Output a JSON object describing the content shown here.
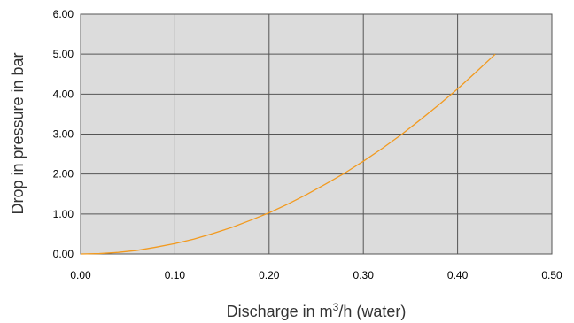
{
  "chart_data": {
    "type": "line",
    "xlabel": {
      "prefix": "Discharge in m",
      "superscript": "3",
      "suffix": "/h (water)"
    },
    "ylabel": "Drop in pressure in bar",
    "xlim": [
      0,
      0.5
    ],
    "ylim": [
      0,
      6
    ],
    "x_ticks": [
      "0.00",
      "0.10",
      "0.20",
      "0.30",
      "0.40",
      "0.50"
    ],
    "y_ticks": [
      "0.00",
      "1.00",
      "2.00",
      "3.00",
      "4.00",
      "5.00",
      "6.00"
    ],
    "grid": true,
    "series": [
      {
        "color": "#f29a1f",
        "x": [
          0.0,
          0.02,
          0.04,
          0.06,
          0.08,
          0.1,
          0.12,
          0.14,
          0.16,
          0.18,
          0.2,
          0.22,
          0.24,
          0.26,
          0.28,
          0.3,
          0.32,
          0.34,
          0.36,
          0.38,
          0.4,
          0.42,
          0.44
        ],
        "y": [
          0.0,
          0.01,
          0.04,
          0.09,
          0.17,
          0.26,
          0.37,
          0.51,
          0.66,
          0.84,
          1.03,
          1.25,
          1.49,
          1.75,
          2.02,
          2.32,
          2.64,
          2.98,
          3.35,
          3.73,
          4.13,
          4.56,
          5.0
        ]
      }
    ],
    "colors": {
      "plot_background": "#dcdcdc",
      "grid": "#555555",
      "axis": "#555555"
    }
  }
}
